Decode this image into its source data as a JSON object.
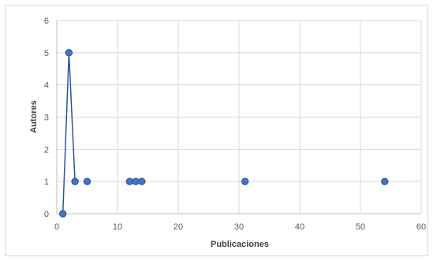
{
  "chart_data": {
    "type": "line",
    "title": "",
    "xlabel": "Publicaciones",
    "ylabel": "Autores",
    "xlim": [
      0,
      60
    ],
    "ylim": [
      0,
      6
    ],
    "x_ticks": [
      0,
      10,
      20,
      30,
      40,
      50,
      60
    ],
    "y_ticks": [
      0,
      1,
      2,
      3,
      4,
      5,
      6
    ],
    "grid": true,
    "legend": "none",
    "series": [
      {
        "color": "#2e5597",
        "marker_color": "#4472c4",
        "points": [
          {
            "x": 1,
            "y": 0
          },
          {
            "x": 2,
            "y": 5
          },
          {
            "x": 3,
            "y": 1
          },
          {
            "x": 5,
            "y": 1
          },
          {
            "x": 12,
            "y": 1
          },
          {
            "x": 13,
            "y": 1
          },
          {
            "x": 14,
            "y": 1
          },
          {
            "x": 31,
            "y": 1
          },
          {
            "x": 54,
            "y": 1
          }
        ],
        "connected_point_count": 3
      }
    ]
  }
}
